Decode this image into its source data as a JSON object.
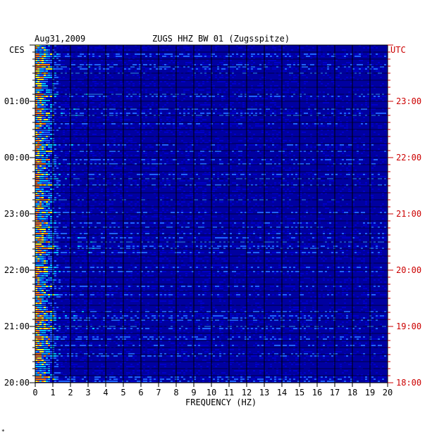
{
  "chart_data": {
    "type": "heatmap",
    "date": "Aug31,2009",
    "title": "ZUGS HHZ BW 01 (Zugsspitze)",
    "left_zone": "CES",
    "right_zone": "UTC",
    "xlabel": "FREQUENCY (HZ)",
    "xlim": [
      0,
      20
    ],
    "x_ticks": [
      "0",
      "1",
      "2",
      "3",
      "4",
      "5",
      "6",
      "7",
      "8",
      "9",
      "10",
      "11",
      "12",
      "13",
      "14",
      "15",
      "16",
      "17",
      "18",
      "19",
      "20"
    ],
    "left_time_labels": [
      "01:00",
      "00:00",
      "23:00",
      "22:00",
      "21:00",
      "20:00"
    ],
    "right_time_labels": [
      "23:00",
      "22:00",
      "21:00",
      "20:00",
      "19:00",
      "18:00"
    ],
    "colors": {
      "background": "#0000a0",
      "low": "#0000c8",
      "mid": "#1e64ff",
      "high": "#00c8ff",
      "peak": "#ffff00",
      "max": "#ff8000",
      "grid": "#000000",
      "utc_label": "#cc0000"
    }
  },
  "footer_mark": "*"
}
